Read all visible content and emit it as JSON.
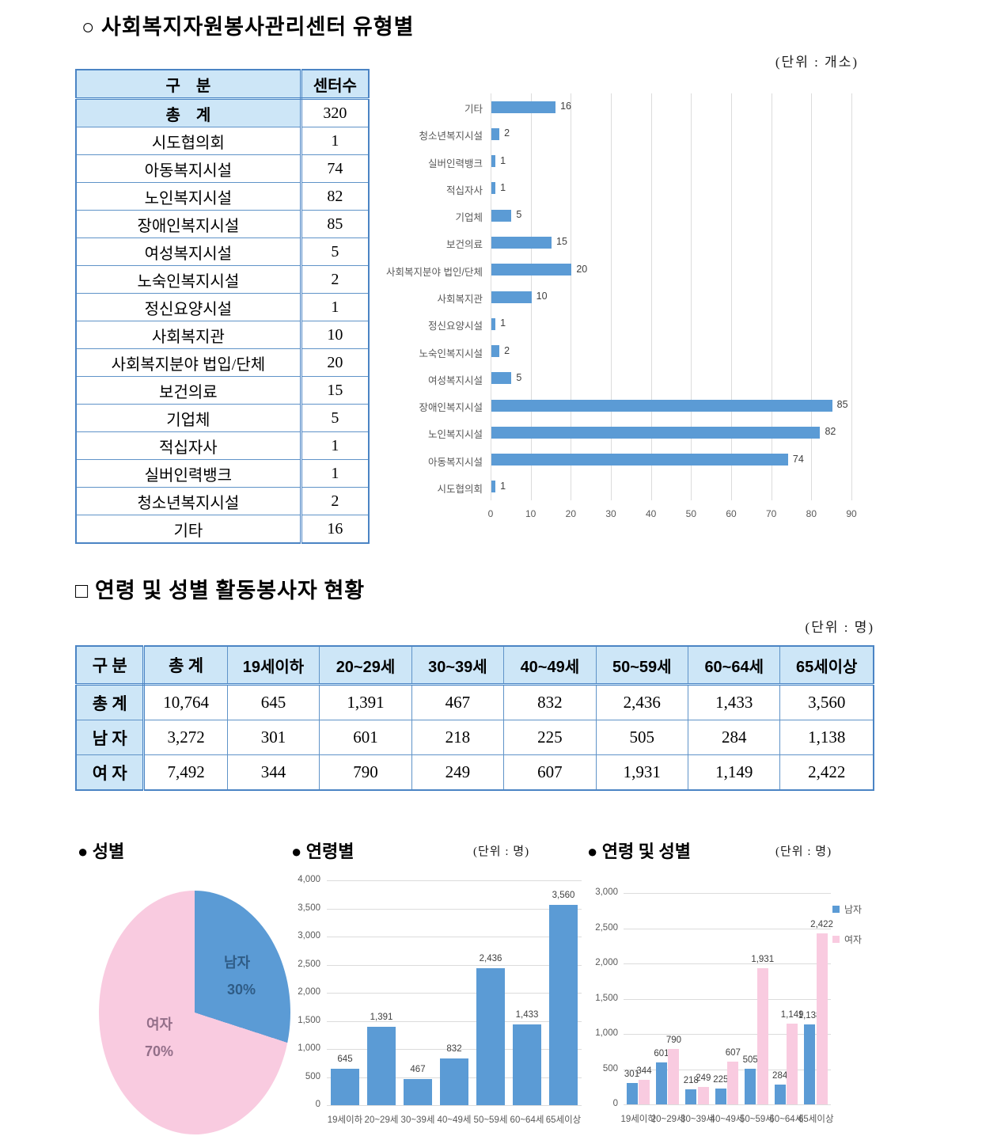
{
  "section1": {
    "title": "○ 사회복지자원봉사관리센터 유형별",
    "table": {
      "headers": [
        "구    분",
        "센터수"
      ],
      "total_row": {
        "label": "총    계",
        "value": "320"
      },
      "rows": [
        {
          "label": "시도협의회",
          "value": "1"
        },
        {
          "label": "아동복지시설",
          "value": "74"
        },
        {
          "label": "노인복지시설",
          "value": "82"
        },
        {
          "label": "장애인복지시설",
          "value": "85"
        },
        {
          "label": "여성복지시설",
          "value": "5"
        },
        {
          "label": "노숙인복지시설",
          "value": "2"
        },
        {
          "label": "정신요양시설",
          "value": "1"
        },
        {
          "label": "사회복지관",
          "value": "10"
        },
        {
          "label": "사회복지분야 법입/단체",
          "value": "20"
        },
        {
          "label": "보건의료",
          "value": "15"
        },
        {
          "label": "기업체",
          "value": "5"
        },
        {
          "label": "적십자사",
          "value": "1"
        },
        {
          "label": "실버인력뱅크",
          "value": "1"
        },
        {
          "label": "청소년복지시설",
          "value": "2"
        },
        {
          "label": "기타",
          "value": "16"
        }
      ]
    }
  },
  "section2": {
    "title": "□ 연령 및 성별 활동봉사자 현황",
    "unit_label": "(단위 : 명)",
    "table": {
      "headers": [
        "구 분",
        "총 계",
        "19세이하",
        "20~29세",
        "30~39세",
        "40~49세",
        "50~59세",
        "60~64세",
        "65세이상"
      ],
      "rows": [
        {
          "label": "총 계",
          "cells": [
            "10,764",
            "645",
            "1,391",
            "467",
            "832",
            "2,436",
            "1,433",
            "3,560"
          ]
        },
        {
          "label": "남 자",
          "cells": [
            "3,272",
            "301",
            "601",
            "218",
            "225",
            "505",
            "284",
            "1,138"
          ]
        },
        {
          "label": "여 자",
          "cells": [
            "7,492",
            "344",
            "790",
            "249",
            "607",
            "1,931",
            "1,149",
            "2,422"
          ]
        }
      ]
    }
  },
  "chart_data": [
    {
      "type": "bar",
      "orientation": "horizontal",
      "title": "사회복지자원봉사관리센터 유형별",
      "unit": "(단위 : 개소)",
      "categories": [
        "기타",
        "청소년복지시설",
        "실버인력뱅크",
        "적십자사",
        "기업체",
        "보건의료",
        "사회복지분야 법인/단체",
        "사회복지관",
        "정신요양시설",
        "노숙인복지시설",
        "여성복지시설",
        "장애인복지시설",
        "노인복지시설",
        "아동복지시설",
        "시도협의회"
      ],
      "values": [
        16,
        2,
        1,
        1,
        5,
        15,
        20,
        10,
        1,
        2,
        5,
        85,
        82,
        74,
        1
      ],
      "xlim": [
        0,
        90
      ],
      "xticks": [
        0,
        10,
        20,
        30,
        40,
        50,
        60,
        70,
        80,
        90
      ],
      "bar_color": "#5B9BD5",
      "grid": true
    },
    {
      "type": "pie",
      "title": "● 성별",
      "slices": [
        {
          "label": "남자",
          "pct": "30%",
          "value": 30,
          "color": "#5B9BD5",
          "text_color": "#2F5C86"
        },
        {
          "label": "여자",
          "pct": "70%",
          "value": 70,
          "color": "#F9CBE0",
          "text_color": "#936F89"
        }
      ]
    },
    {
      "type": "bar",
      "title": "● 연령별",
      "unit": "(단위 : 명)",
      "categories": [
        "19세이하",
        "20~29세",
        "30~39세",
        "40~49세",
        "50~59세",
        "60~64세",
        "65세이상"
      ],
      "values": [
        645,
        1391,
        467,
        832,
        2436,
        1433,
        3560
      ],
      "ylim": [
        0,
        4000
      ],
      "ytick_step": 500,
      "bar_color": "#5B9BD5",
      "grid": true
    },
    {
      "type": "bar",
      "title": "● 연령 및 성별",
      "unit": "(단위 : 명)",
      "categories": [
        "19세이하",
        "20~29세",
        "30~39세",
        "40~49세",
        "50~59세",
        "60~64세",
        "65세이상"
      ],
      "series": [
        {
          "name": "남자",
          "color": "#5B9BD5",
          "values": [
            301,
            601,
            218,
            225,
            505,
            284,
            1138
          ]
        },
        {
          "name": "여자",
          "color": "#F9CBE0",
          "values": [
            344,
            790,
            249,
            607,
            1931,
            1149,
            2422
          ]
        }
      ],
      "ylim": [
        0,
        3000
      ],
      "ytick_step": 500,
      "legend_position": "right",
      "grid": true
    }
  ]
}
